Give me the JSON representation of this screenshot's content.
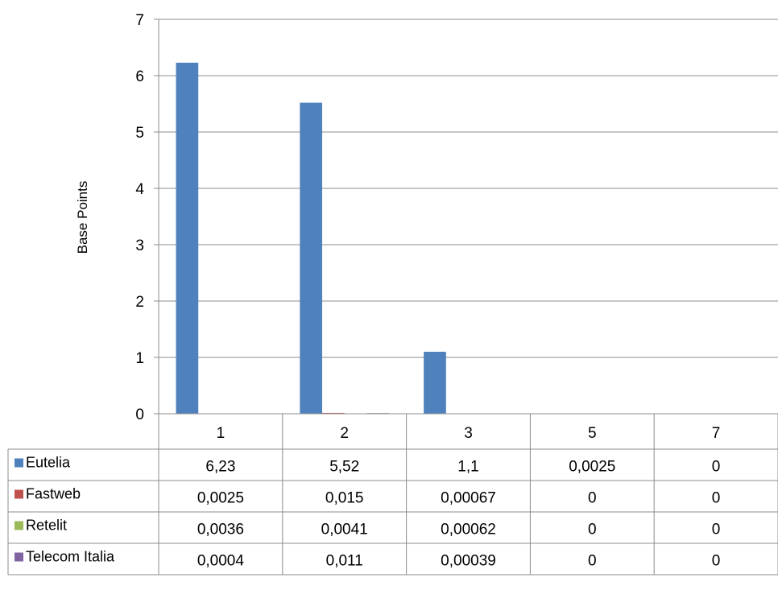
{
  "chart_data": {
    "type": "bar",
    "ylabel": "Base Points",
    "ylim": [
      0,
      7
    ],
    "yticks": [
      "0",
      "1",
      "2",
      "3",
      "4",
      "5",
      "6",
      "7"
    ],
    "categories": [
      "1",
      "2",
      "3",
      "5",
      "7"
    ],
    "grid": true,
    "legend": "data-table",
    "series": [
      {
        "name": "Eutelia",
        "color": "#4f81bd",
        "values": [
          6.23,
          5.52,
          1.1,
          0.0025,
          0
        ],
        "labels": [
          "6,23",
          "5,52",
          "1,1",
          "0,0025",
          "0"
        ]
      },
      {
        "name": "Fastweb",
        "color": "#c0504d",
        "values": [
          0.0025,
          0.015,
          0.00067,
          0,
          0
        ],
        "labels": [
          "0,0025",
          "0,015",
          "0,00067",
          "0",
          "0"
        ]
      },
      {
        "name": "Retelit",
        "color": "#9bbb59",
        "values": [
          0.0036,
          0.0041,
          0.00062,
          0,
          0
        ],
        "labels": [
          "0,0036",
          "0,0041",
          "0,00062",
          "0",
          "0"
        ]
      },
      {
        "name": "Telecom Italia",
        "color": "#8064a2",
        "values": [
          0.0004,
          0.011,
          0.00039,
          0,
          0
        ],
        "labels": [
          "0,0004",
          "0,011",
          "0,00039",
          "0",
          "0"
        ]
      }
    ]
  }
}
